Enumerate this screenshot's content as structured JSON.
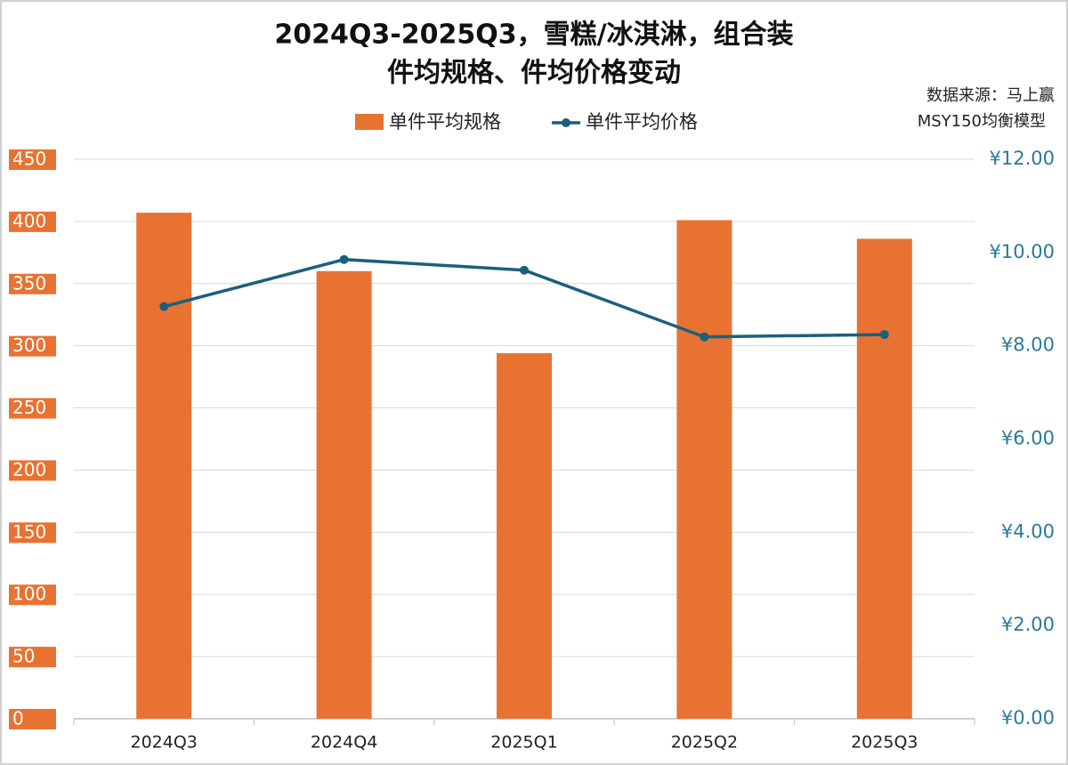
{
  "chart_data": {
    "type": "bar-line",
    "title": "2024Q3-2025Q3，雪糕/冰淇淋，组合装",
    "subtitle": "件均规格、件均价格变动",
    "source": "数据来源：马上赢",
    "model": "MSY150均衡模型",
    "categories": [
      "2024Q3",
      "2024Q4",
      "2025Q1",
      "2025Q2",
      "2025Q3"
    ],
    "series": [
      {
        "name": "单件平均规格",
        "color": "#e87232",
        "values": [
          407,
          360,
          294,
          401,
          386
        ]
      },
      {
        "name": "单件平均价格",
        "color": "#1c5f7c",
        "axis": "y2",
        "values": [
          8.84,
          9.85,
          9.62,
          8.19,
          8.24
        ]
      }
    ],
    "ylim": [
      0,
      450
    ],
    "yticks": [
      0,
      50,
      100,
      150,
      200,
      250,
      300,
      350,
      400,
      450
    ],
    "y2lim": [
      0,
      12
    ],
    "y2ticks": [
      {
        "value": 0,
        "label": "¥0.00"
      },
      {
        "value": 2,
        "label": "¥2.00"
      },
      {
        "value": 4,
        "label": "¥4.00"
      },
      {
        "value": 6,
        "label": "¥6.00"
      },
      {
        "value": 8,
        "label": "¥8.00"
      },
      {
        "value": 10,
        "label": "¥10.00"
      },
      {
        "value": 12,
        "label": "¥12.00"
      }
    ],
    "grid": true,
    "legend": "top"
  }
}
